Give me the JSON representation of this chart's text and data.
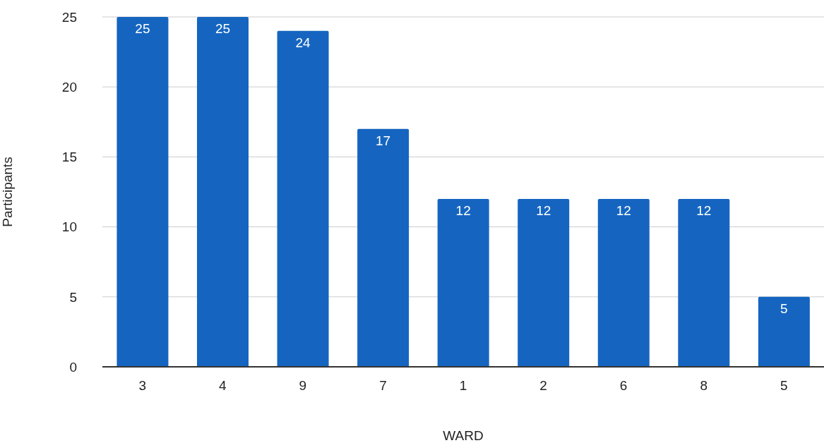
{
  "chart_data": {
    "type": "bar",
    "xlabel": "WARD",
    "ylabel": "Participants",
    "categories": [
      "3",
      "4",
      "9",
      "7",
      "1",
      "2",
      "6",
      "8",
      "5"
    ],
    "values": [
      25,
      25,
      24,
      17,
      12,
      12,
      12,
      12,
      5
    ],
    "color": "#1565c0",
    "ylim": [
      0,
      25
    ],
    "yticks": [
      0,
      5,
      10,
      15,
      20,
      25
    ],
    "grid": "y",
    "data_labels": true
  }
}
